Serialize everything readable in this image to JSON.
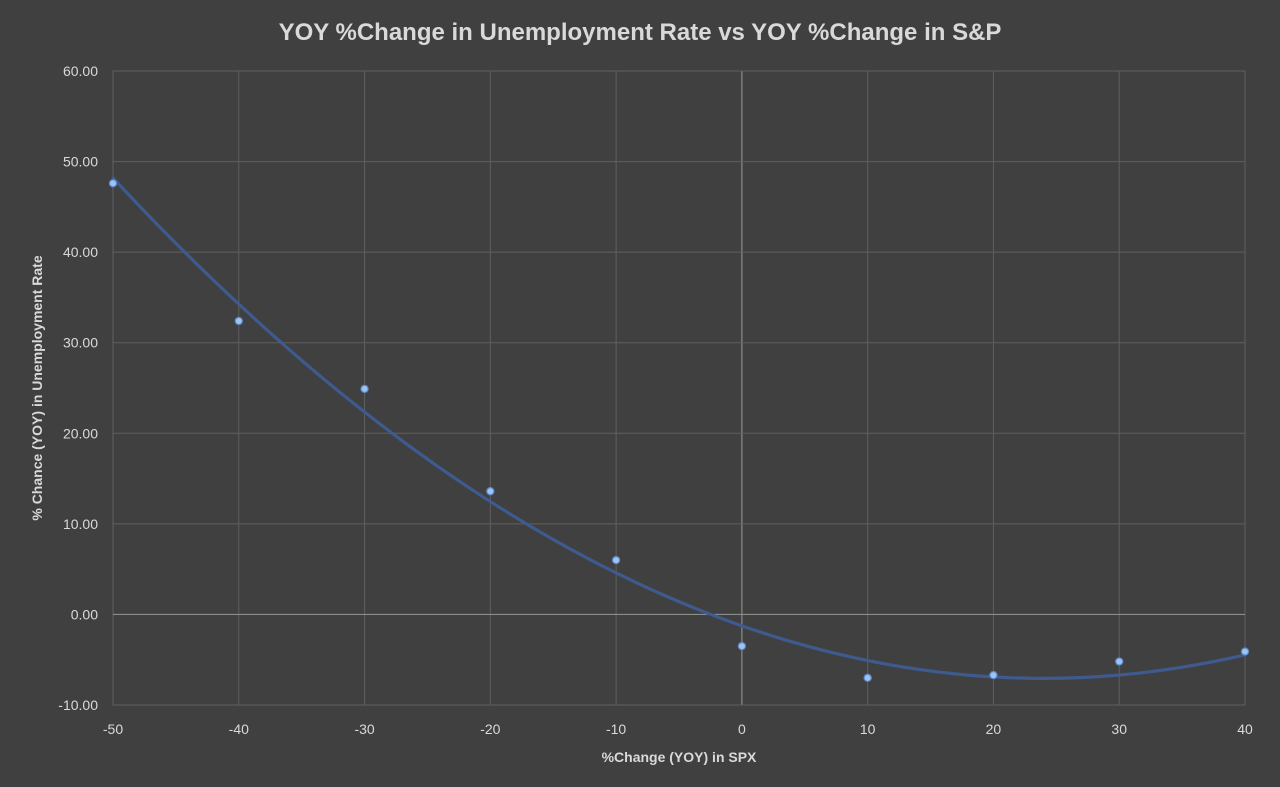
{
  "chart_data": {
    "type": "scatter",
    "title": "YOY %Change in Unemployment Rate vs YOY  %Change in S&P",
    "xlabel": "%Change (YOY) in SPX",
    "ylabel": "% Chance  (YOY) in Unemployment Rate",
    "xlim": [
      -50,
      40
    ],
    "ylim": [
      -10,
      60
    ],
    "xticks": [
      -50,
      -40,
      -30,
      -20,
      -10,
      0,
      10,
      20,
      30,
      40
    ],
    "xtick_labels": [
      "-50",
      "-40",
      "-30",
      "-20",
      "-10",
      "0",
      "10",
      "20",
      "30",
      "40"
    ],
    "yticks": [
      -10,
      0,
      10,
      20,
      30,
      40,
      50,
      60
    ],
    "ytick_labels": [
      "-10.00",
      "0.00",
      "10.00",
      "20.00",
      "30.00",
      "40.00",
      "50.00",
      "60.00"
    ],
    "grid": true,
    "legend": "none",
    "points": [
      {
        "x": -50,
        "y": 47.6
      },
      {
        "x": -40,
        "y": 32.4
      },
      {
        "x": -30,
        "y": 24.9
      },
      {
        "x": -20,
        "y": 13.6
      },
      {
        "x": -10,
        "y": 6.0
      },
      {
        "x": 0,
        "y": -3.5
      },
      {
        "x": 10,
        "y": -7.0
      },
      {
        "x": 20,
        "y": -6.7
      },
      {
        "x": 30,
        "y": -5.2
      },
      {
        "x": 40,
        "y": -4.1
      }
    ],
    "trendline": {
      "type": "polynomial",
      "order": 2,
      "coefficients": [
        -1.26,
        -0.484,
        0.0101
      ]
    },
    "colors": {
      "background": "#404040",
      "trendline": "#3e5a8e",
      "marker": "#9dc3f0",
      "grid": "#5f5f5f",
      "text": "#d9d9d9"
    }
  }
}
